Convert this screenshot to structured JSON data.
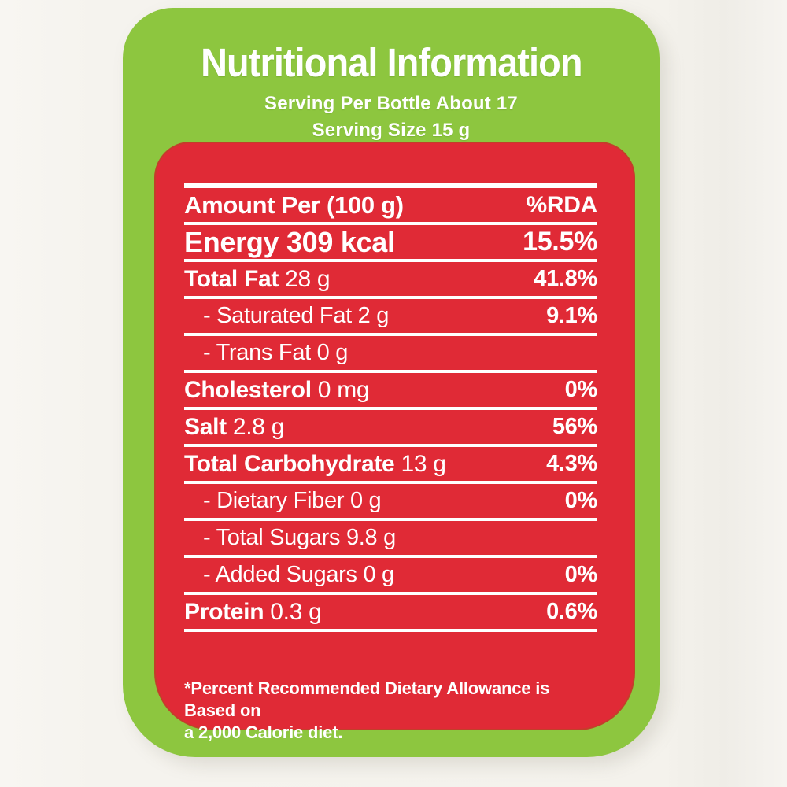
{
  "colors": {
    "green": "#8dc63f",
    "red": "#e02a36",
    "text": "#ffffff"
  },
  "header": {
    "title": "Nutritional Information",
    "serving_per_bottle": "Serving Per Bottle About 17",
    "serving_size": "Serving Size 15 g"
  },
  "table": {
    "rows": [
      {
        "label_bold": "Amount Per (100 g)",
        "value": "%RDA",
        "class": "header"
      },
      {
        "label_bold": "Energy 309 kcal",
        "value": "15.5%",
        "class": "energy"
      },
      {
        "label_bold": "Total Fat",
        "label_rest": "28 g",
        "value": "41.8%"
      },
      {
        "label_rest": "- Saturated Fat 2 g",
        "value": "9.1%",
        "class": "sub"
      },
      {
        "label_rest": "- Trans Fat 0 g",
        "value": "",
        "class": "sub"
      },
      {
        "label_bold": "Cholesterol",
        "label_rest": "0 mg",
        "value": "0%"
      },
      {
        "label_bold": "Salt",
        "label_rest": "2.8 g",
        "value": "56%"
      },
      {
        "label_bold": "Total Carbohydrate",
        "label_rest": "13 g",
        "value": "4.3%"
      },
      {
        "label_rest": "- Dietary Fiber 0 g",
        "value": "0%",
        "class": "sub"
      },
      {
        "label_rest": "- Total Sugars 9.8 g",
        "value": "",
        "class": "sub"
      },
      {
        "label_rest": "- Added Sugars 0 g",
        "value": "0%",
        "class": "sub"
      },
      {
        "label_bold": "Protein",
        "label_rest": "0.3 g",
        "value": "0.6%"
      }
    ],
    "footnote_line1": "*Percent Recommended Dietary Allowance is Based on",
    "footnote_line2": "a 2,000 Calorie diet."
  }
}
